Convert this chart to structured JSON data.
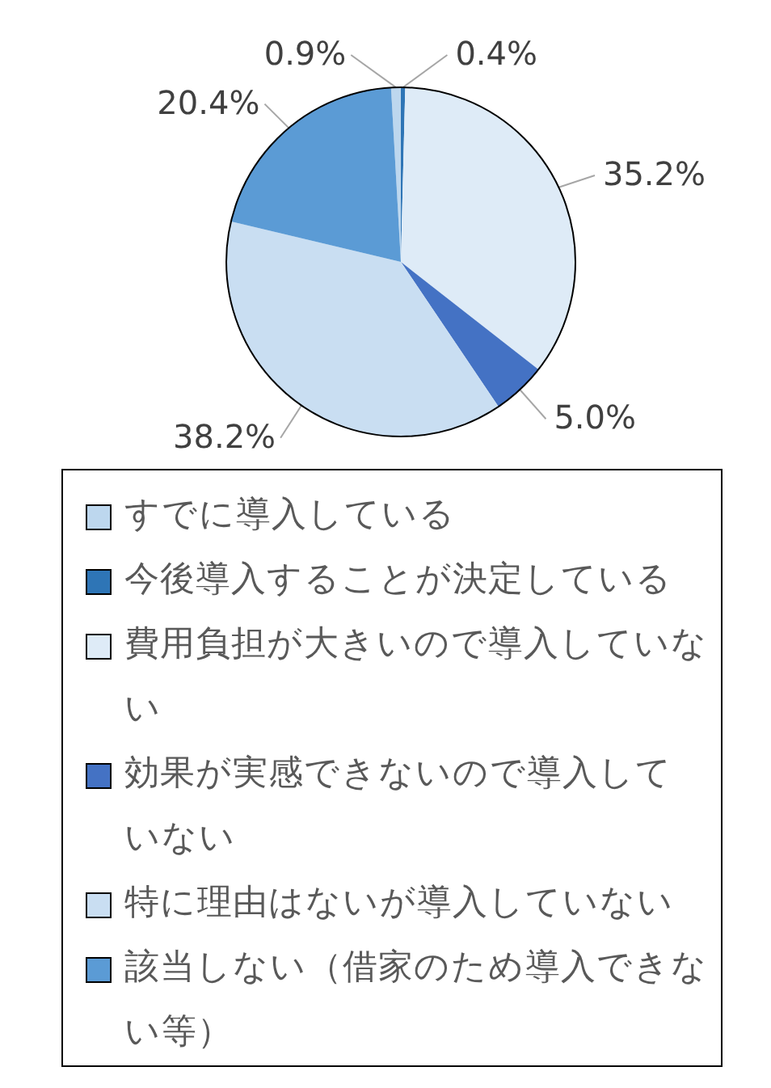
{
  "chart_data": {
    "type": "pie",
    "categories": [
      "すでに導入している",
      "今後導入することが決定している",
      "費用負担が大きいので導入していない",
      "効果が実感できないので導入していない",
      "特に理由はないが導入していない",
      "該当しない（借家のため導入できない等）"
    ],
    "values": [
      0.9,
      0.4,
      35.2,
      5.0,
      38.2,
      20.4
    ],
    "value_labels": [
      "0.9%",
      "0.4%",
      "35.2%",
      "5.0%",
      "38.2%",
      "20.4%"
    ],
    "colors": [
      "#bdd7ee",
      "#2e75b6",
      "#deebf7",
      "#4472c4",
      "#c9def2",
      "#5b9bd5"
    ],
    "legend": "bottom"
  }
}
